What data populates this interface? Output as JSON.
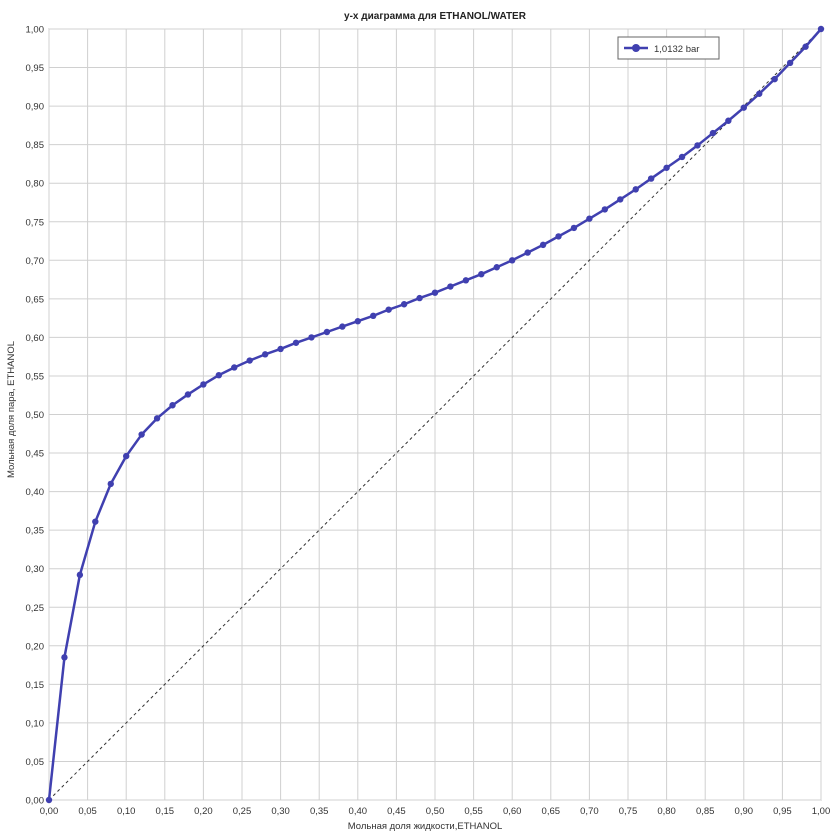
{
  "chart_data": {
    "type": "line",
    "title": "y-x диаграмма для ETHANOL/WATER",
    "xlabel": "Мольная доля жидкости,ETHANOL",
    "ylabel": "Мольная доля пара, ETHANOL",
    "xlim": [
      0,
      1
    ],
    "ylim": [
      0,
      1
    ],
    "grid": true,
    "legend_position": "top-right",
    "x_ticks": [
      "0,00",
      "0,05",
      "0,10",
      "0,15",
      "0,20",
      "0,25",
      "0,30",
      "0,35",
      "0,40",
      "0,45",
      "0,50",
      "0,55",
      "0,60",
      "0,65",
      "0,70",
      "0,75",
      "0,80",
      "0,85",
      "0,90",
      "0,95",
      "1,00"
    ],
    "y_ticks": [
      "0,00",
      "0,05",
      "0,10",
      "0,15",
      "0,20",
      "0,25",
      "0,30",
      "0,35",
      "0,40",
      "0,45",
      "0,50",
      "0,55",
      "0,60",
      "0,65",
      "0,70",
      "0,75",
      "0,80",
      "0,85",
      "0,90",
      "0,95",
      "1,00"
    ],
    "series": [
      {
        "name": "1,0132 bar",
        "color": "#4040b0",
        "marker": "circle",
        "x": [
          0.0,
          0.02,
          0.04,
          0.06,
          0.08,
          0.1,
          0.12,
          0.14,
          0.16,
          0.18,
          0.2,
          0.22,
          0.24,
          0.26,
          0.28,
          0.3,
          0.32,
          0.34,
          0.36,
          0.38,
          0.4,
          0.42,
          0.44,
          0.46,
          0.48,
          0.5,
          0.52,
          0.54,
          0.56,
          0.58,
          0.6,
          0.62,
          0.64,
          0.66,
          0.68,
          0.7,
          0.72,
          0.74,
          0.76,
          0.78,
          0.8,
          0.82,
          0.84,
          0.86,
          0.88,
          0.9,
          0.92,
          0.94,
          0.96,
          0.98,
          1.0
        ],
        "y": [
          0.0,
          0.185,
          0.292,
          0.361,
          0.41,
          0.446,
          0.474,
          0.495,
          0.512,
          0.526,
          0.539,
          0.551,
          0.561,
          0.57,
          0.578,
          0.585,
          0.593,
          0.6,
          0.607,
          0.614,
          0.621,
          0.628,
          0.636,
          0.643,
          0.651,
          0.658,
          0.666,
          0.674,
          0.682,
          0.691,
          0.7,
          0.71,
          0.72,
          0.731,
          0.742,
          0.754,
          0.766,
          0.779,
          0.792,
          0.806,
          0.82,
          0.834,
          0.849,
          0.865,
          0.881,
          0.898,
          0.916,
          0.935,
          0.956,
          0.977,
          1.0
        ]
      },
      {
        "name": "",
        "color": "#333333",
        "style": "dashed",
        "x": [
          0,
          1
        ],
        "y": [
          0,
          1
        ]
      }
    ]
  }
}
